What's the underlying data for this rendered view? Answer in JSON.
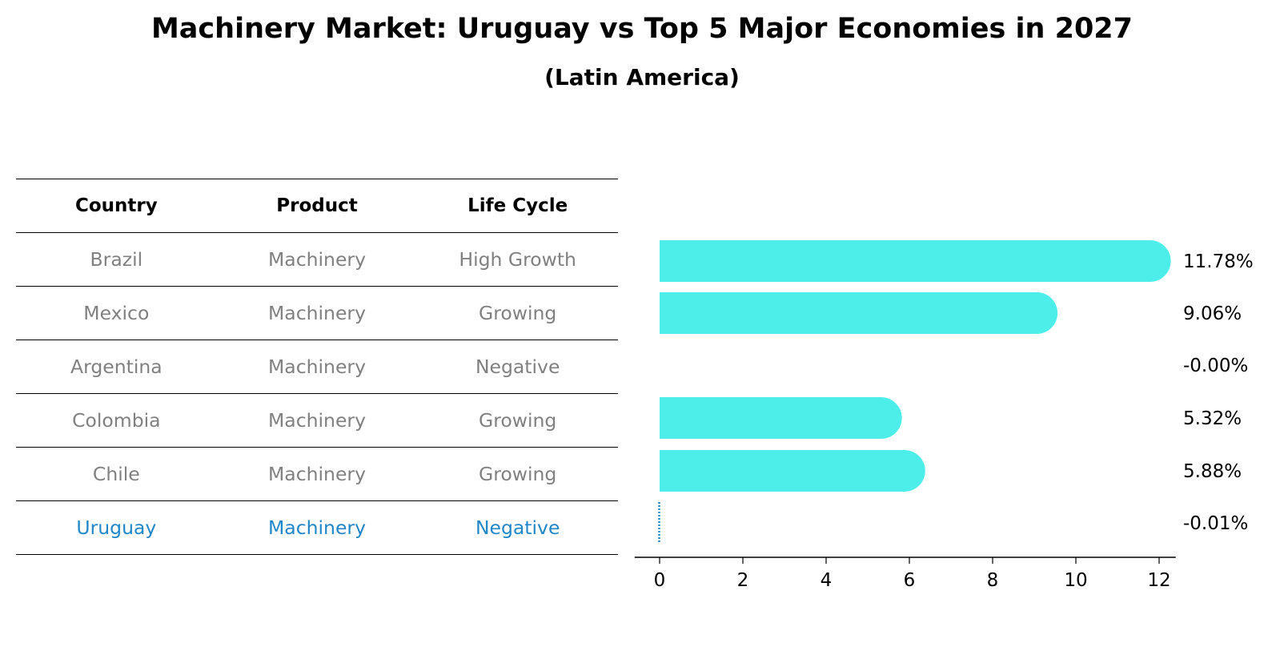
{
  "title": "Machinery Market: Uruguay vs Top 5 Major Economies in 2027",
  "subtitle": "(Latin America)",
  "table": {
    "headers": [
      "Country",
      "Product",
      "Life Cycle"
    ],
    "rows": [
      [
        "Brazil",
        "Machinery",
        "High Growth"
      ],
      [
        "Mexico",
        "Machinery",
        "Growing"
      ],
      [
        "Argentina",
        "Machinery",
        "Negative"
      ],
      [
        "Colombia",
        "Machinery",
        "Growing"
      ],
      [
        "Chile",
        "Machinery",
        "Growing"
      ],
      [
        "Uruguay",
        "Machinery",
        "Negative"
      ]
    ],
    "highlight_row": "Uruguay"
  },
  "chart_data": {
    "type": "bar",
    "orientation": "horizontal",
    "categories": [
      "Brazil",
      "Mexico",
      "Argentina",
      "Colombia",
      "Chile",
      "Uruguay"
    ],
    "values": [
      11.78,
      9.06,
      -0.0,
      5.32,
      5.88,
      -0.01
    ],
    "value_labels": [
      "11.78%",
      "9.06%",
      "-0.00%",
      "5.32%",
      "5.88%",
      "-0.01%"
    ],
    "xlim": [
      -0.6,
      12.4
    ],
    "xticks": [
      0,
      2,
      4,
      6,
      8,
      10,
      12
    ],
    "grid": false,
    "colors": {
      "bar": "#4deeea",
      "highlight": "#1f86c9"
    }
  }
}
